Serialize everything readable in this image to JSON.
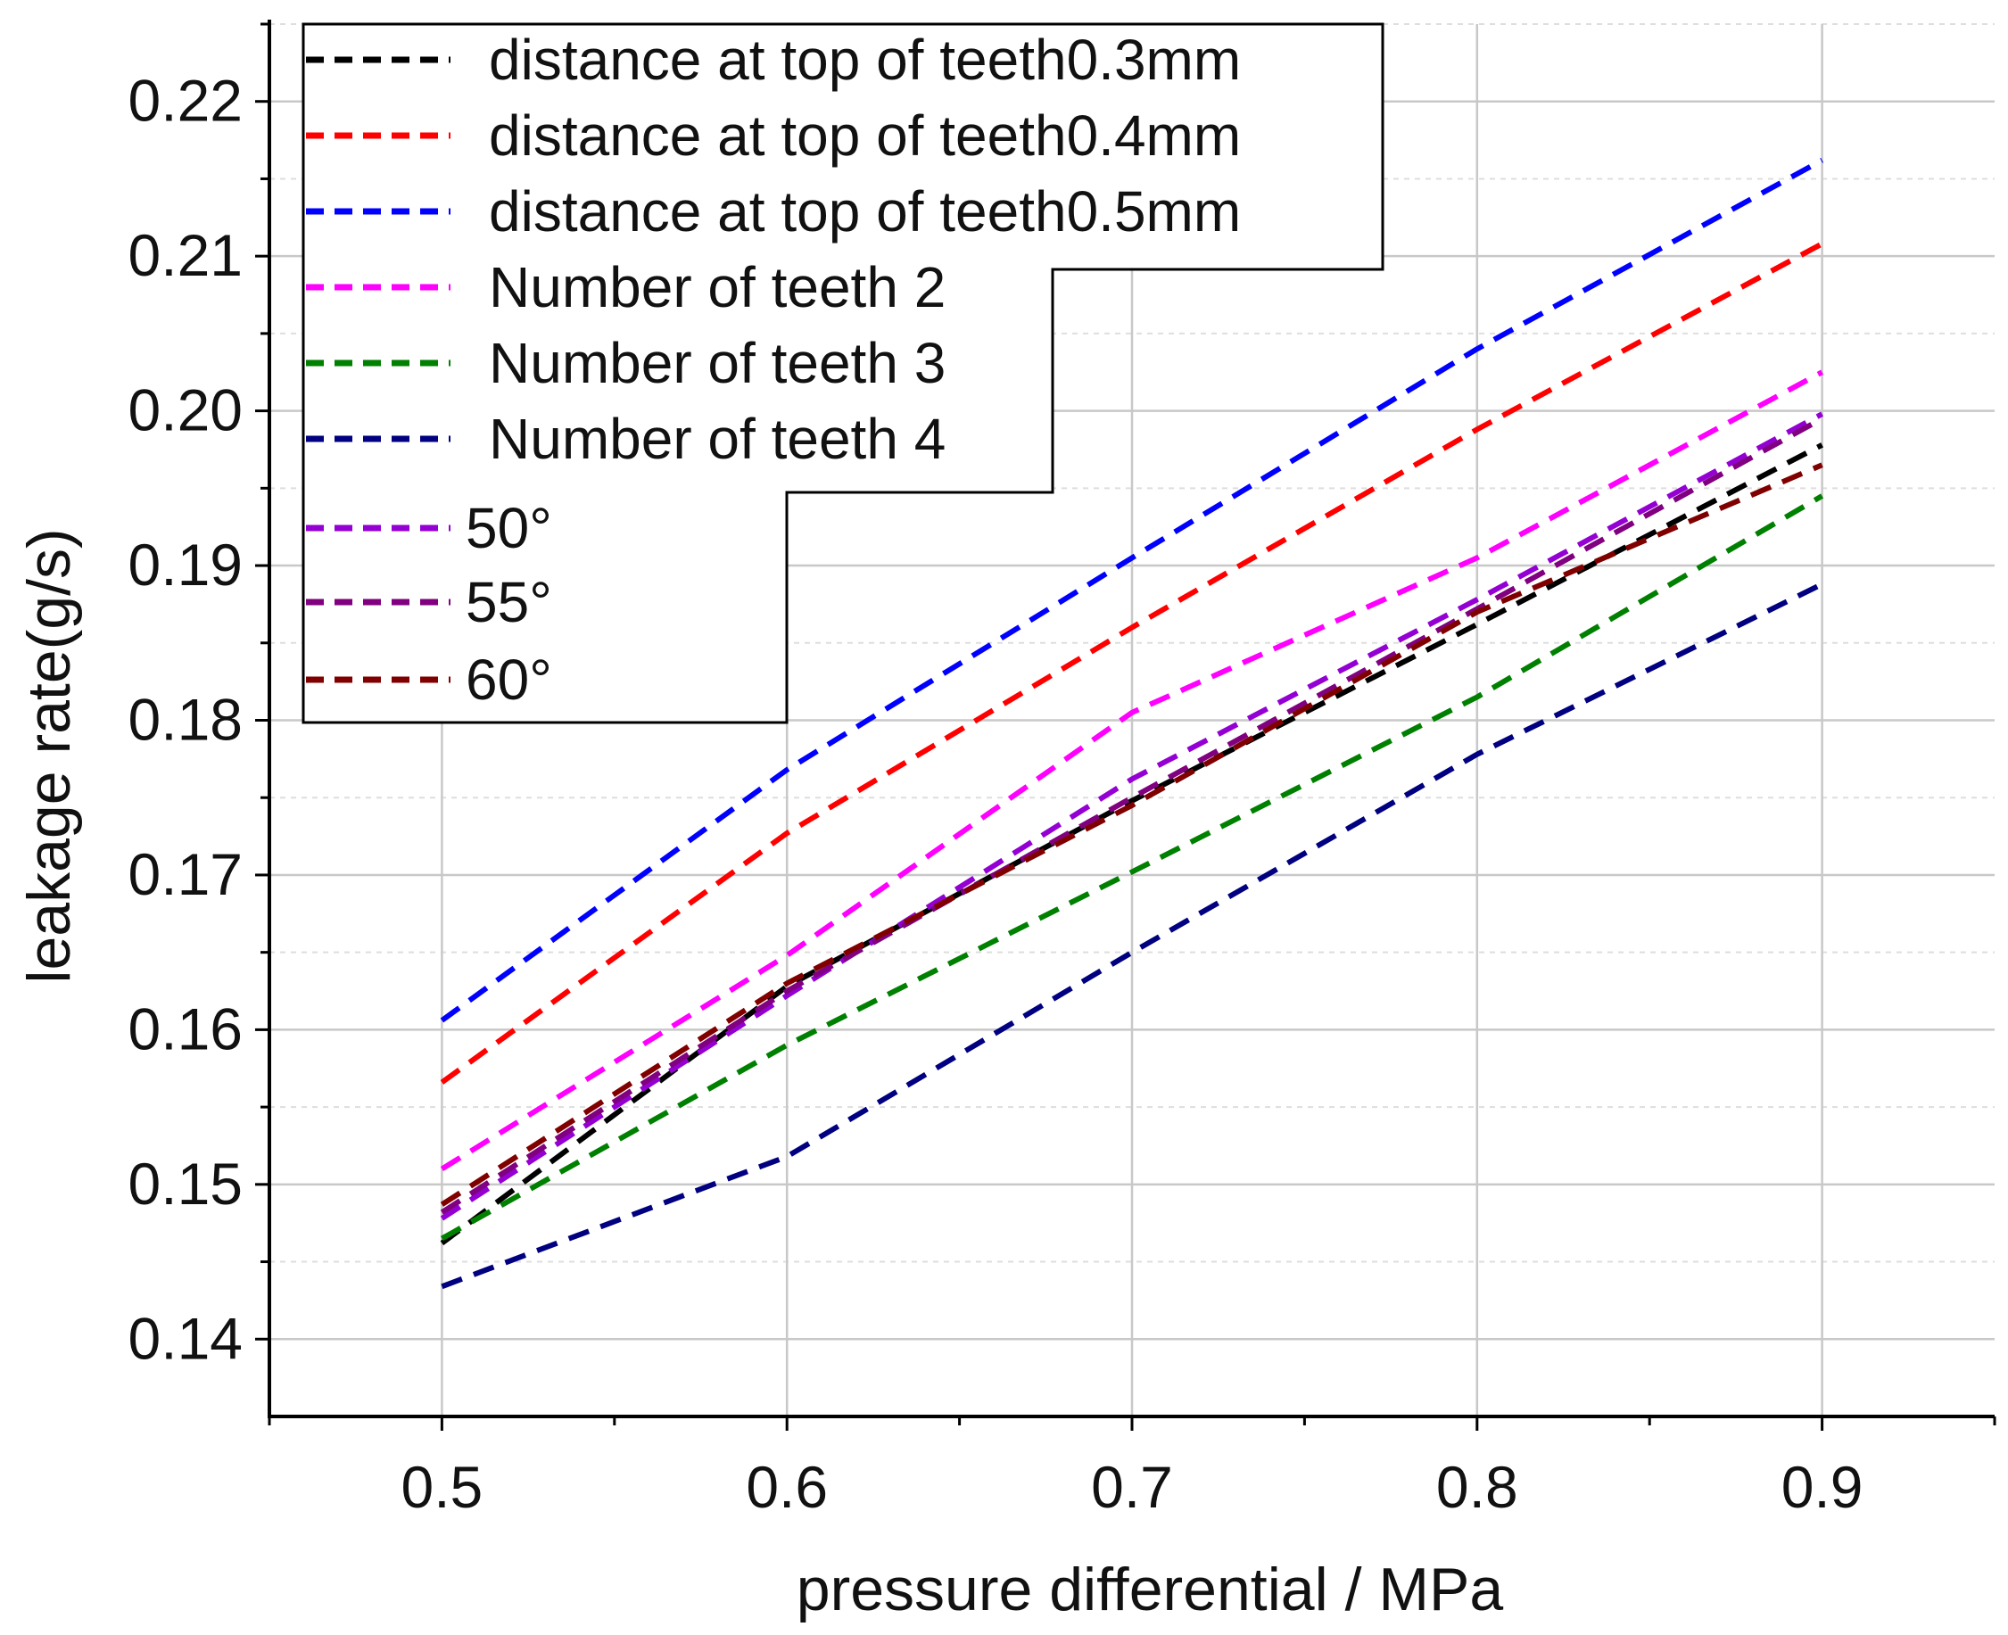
{
  "chart_data": {
    "type": "line",
    "title": "",
    "xlabel": "pressure differential / MPa",
    "ylabel": "leakage rate(g/s)",
    "xlim": [
      0.45,
      0.95
    ],
    "ylim": [
      0.135,
      0.225
    ],
    "xticks": [
      0.5,
      0.6,
      0.7,
      0.8,
      0.9
    ],
    "xtick_labels": [
      "0.5",
      "0.6",
      "0.7",
      "0.8",
      "0.9"
    ],
    "yticks": [
      0.14,
      0.15,
      0.16,
      0.17,
      0.18,
      0.19,
      0.2,
      0.21,
      0.22
    ],
    "ytick_labels": [
      "0.14",
      "0.15",
      "0.16",
      "0.17",
      "0.18",
      "0.19",
      "0.20",
      "0.21",
      "0.22"
    ],
    "grid": true,
    "legend_position": "top-left",
    "x": [
      0.5,
      0.6,
      0.7,
      0.8,
      0.9
    ],
    "series": [
      {
        "name": "distance at top of teeth0.3mm",
        "color": "#000000",
        "values": [
          0.1462,
          0.1628,
          0.1748,
          0.1862,
          0.1978
        ]
      },
      {
        "name": "distance at top of teeth0.4mm",
        "color": "#ff0000",
        "values": [
          0.1566,
          0.1727,
          0.186,
          0.1988,
          0.2108
        ]
      },
      {
        "name": "distance at top of teeth0.5mm",
        "color": "#0000ff",
        "values": [
          0.1606,
          0.1768,
          0.1905,
          0.204,
          0.2162
        ]
      },
      {
        "name": "Number of teeth 2",
        "color": "#ff00ff",
        "values": [
          0.151,
          0.1648,
          0.1805,
          0.1905,
          0.2025
        ]
      },
      {
        "name": "Number of teeth 3",
        "color": "#008000",
        "values": [
          0.1465,
          0.159,
          0.1702,
          0.1815,
          0.1945
        ]
      },
      {
        "name": "Number of teeth 4",
        "color": "#000080",
        "values": [
          0.1434,
          0.1518,
          0.165,
          0.1778,
          0.1888
        ]
      },
      {
        "name": "50°",
        "color": "#9400d3",
        "values": [
          0.1478,
          0.1622,
          0.1762,
          0.1878,
          0.1998
        ]
      },
      {
        "name": "55°",
        "color": "#800080",
        "values": [
          0.1482,
          0.1625,
          0.175,
          0.1872,
          0.1995
        ]
      },
      {
        "name": "60°",
        "color": "#800000",
        "values": [
          0.1487,
          0.163,
          0.1745,
          0.187,
          0.1965
        ]
      }
    ]
  }
}
